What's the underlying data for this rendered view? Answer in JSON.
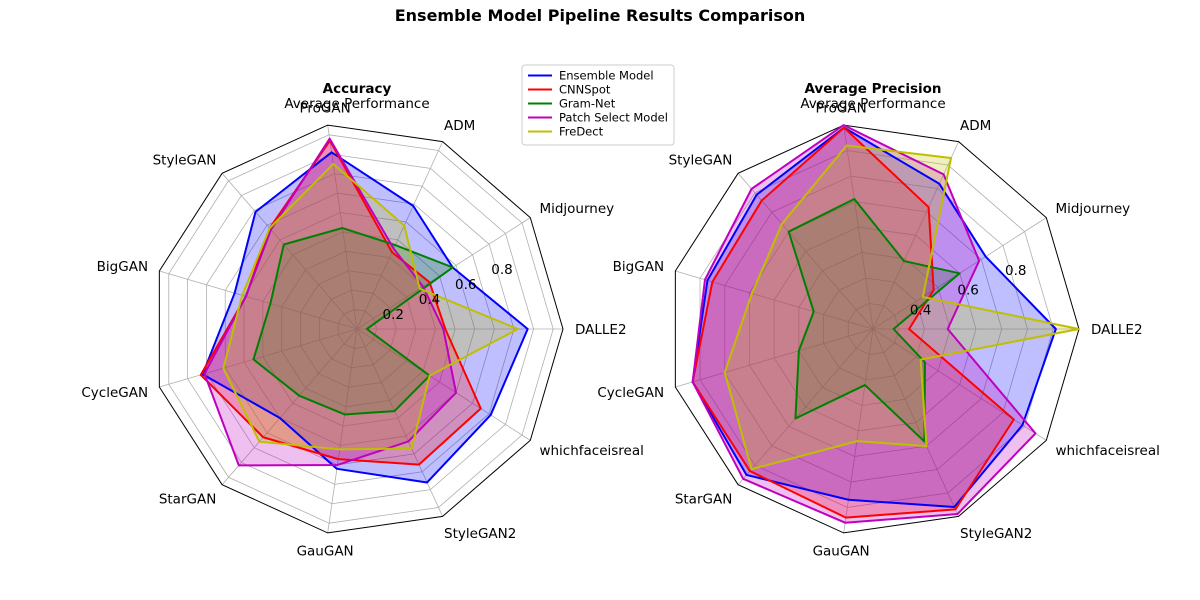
{
  "title": "Ensemble Model Pipeline Results Comparison",
  "colors": {
    "Ensemble Model": "#0000ff",
    "CNNSpot": "#ff0000",
    "Gram-Net": "#008000",
    "Patch Select Model": "#bf00bf",
    "FreDect": "#bfbf00"
  },
  "legend": {
    "position": "upper-center",
    "entries": [
      "Ensemble Model",
      "CNNSpot",
      "Gram-Net",
      "Patch Select Model",
      "FreDect"
    ]
  },
  "chart_data": [
    {
      "type": "radar",
      "title": "Accuracy",
      "subtitle": "Average Performance",
      "categories": [
        "DALLE2",
        "Midjourney",
        "ADM",
        "ProGAN",
        "StyleGAN",
        "BigGAN",
        "CycleGAN",
        "StarGAN",
        "GauGAN",
        "StyleGAN2",
        "whichfaceisreal"
      ],
      "rlim": [
        0,
        1.05
      ],
      "rticks": [
        0.2,
        0.4,
        0.6,
        0.8
      ],
      "grid": true,
      "series": [
        {
          "name": "Ensemble Model",
          "values": [
            0.87,
            0.58,
            0.69,
            0.91,
            0.79,
            0.65,
            0.82,
            0.6,
            0.72,
            0.86,
            0.81
          ]
        },
        {
          "name": "CNNSpot",
          "values": [
            0.45,
            0.44,
            0.43,
            0.97,
            0.68,
            0.59,
            0.83,
            0.73,
            0.67,
            0.76,
            0.75
          ]
        },
        {
          "name": "Gram-Net",
          "values": [
            0.05,
            0.58,
            0.47,
            0.52,
            0.57,
            0.46,
            0.55,
            0.45,
            0.44,
            0.46,
            0.44
          ]
        },
        {
          "name": "Patch Select Model",
          "values": [
            0.44,
            0.4,
            0.45,
            0.98,
            0.67,
            0.59,
            0.81,
            0.92,
            0.7,
            0.63,
            0.6
          ]
        },
        {
          "name": "FreDect",
          "values": [
            0.82,
            0.38,
            0.58,
            0.85,
            0.68,
            0.61,
            0.71,
            0.76,
            0.62,
            0.67,
            0.44
          ]
        }
      ]
    },
    {
      "type": "radar",
      "title": "Average Precision",
      "subtitle": "Average Performance",
      "categories": [
        "DALLE2",
        "Midjourney",
        "ADM",
        "ProGAN",
        "StyleGAN",
        "BigGAN",
        "CycleGAN",
        "StarGAN",
        "GauGAN",
        "StyleGAN2",
        "whichfaceisreal"
      ],
      "rlim": [
        0.2,
        1.0
      ],
      "rticks": [
        0.4,
        0.6,
        0.8
      ],
      "grid": true,
      "series": [
        {
          "name": "Ensemble Model",
          "values": [
            0.91,
            0.72,
            0.82,
            0.99,
            0.89,
            0.87,
            0.93,
            0.95,
            0.87,
            0.96,
            0.89
          ]
        },
        {
          "name": "CNNSpot",
          "values": [
            0.34,
            0.48,
            0.72,
            0.99,
            0.86,
            0.85,
            0.93,
            0.93,
            0.94,
            0.97,
            0.85
          ]
        },
        {
          "name": "Gram-Net",
          "values": [
            0.28,
            0.6,
            0.49,
            0.71,
            0.7,
            0.44,
            0.5,
            0.66,
            0.42,
            0.68,
            0.44
          ]
        },
        {
          "name": "Patch Select Model",
          "values": [
            0.49,
            0.69,
            0.86,
            1.0,
            0.92,
            0.88,
            0.93,
            0.97,
            0.96,
            0.99,
            0.95
          ]
        },
        {
          "name": "FreDect",
          "values": [
            1.0,
            0.43,
            0.93,
            0.92,
            0.74,
            0.69,
            0.8,
            0.92,
            0.64,
            0.7,
            0.42
          ]
        }
      ]
    }
  ]
}
